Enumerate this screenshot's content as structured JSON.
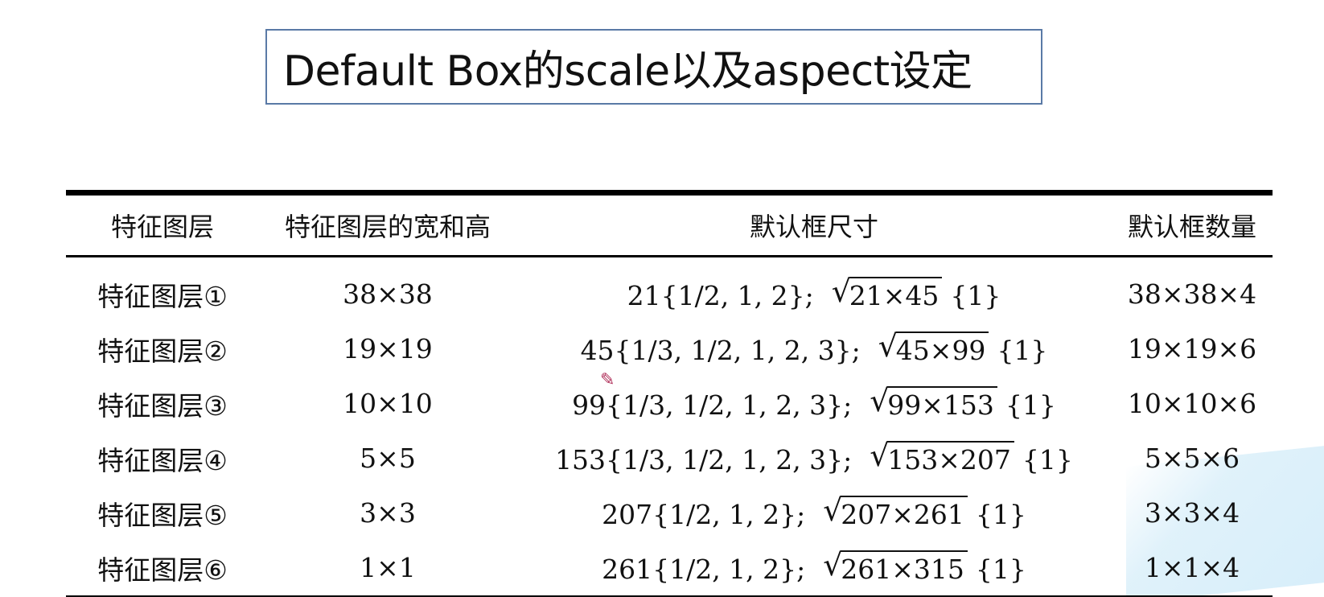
{
  "title": "Default Box的scale以及aspect设定",
  "table": {
    "headers": [
      "特征图层",
      "特征图层的宽和高",
      "默认框尺寸",
      "默认框数量"
    ],
    "rows": [
      {
        "layer": "特征图层①",
        "size": "38×38",
        "box_scale": "21{1/2, 1, 2};",
        "sqrt_expr": "21×45",
        "box_extra": "{1}",
        "count": "38×38×4"
      },
      {
        "layer": "特征图层②",
        "size": "19×19",
        "box_scale": "45{1/3, 1/2, 1, 2, 3};",
        "sqrt_expr": "45×99",
        "box_extra": "{1}",
        "count": "19×19×6"
      },
      {
        "layer": "特征图层③",
        "size": "10×10",
        "box_scale": "99{1/3, 1/2, 1, 2, 3};",
        "sqrt_expr": "99×153",
        "box_extra": "{1}",
        "count": "10×10×6"
      },
      {
        "layer": "特征图层④",
        "size": "5×5",
        "box_scale": "153{1/3, 1/2, 1, 2, 3};",
        "sqrt_expr": "153×207",
        "box_extra": "{1}",
        "count": "5×5×6"
      },
      {
        "layer": "特征图层⑤",
        "size": "3×3",
        "box_scale": "207{1/2, 1, 2};",
        "sqrt_expr": "207×261",
        "box_extra": "{1}",
        "count": "3×3×4"
      },
      {
        "layer": "特征图层⑥",
        "size": "1×1",
        "box_scale": "261{1/2, 1, 2};",
        "sqrt_expr": "261×315",
        "box_extra": "{1}",
        "count": "1×1×4"
      }
    ]
  },
  "icons": {
    "cursor": "pen-cursor-icon",
    "sqrt": "square-root-icon"
  },
  "colors": {
    "title_border": "#5a7aa6",
    "corner_decor": "#d7eefa"
  }
}
